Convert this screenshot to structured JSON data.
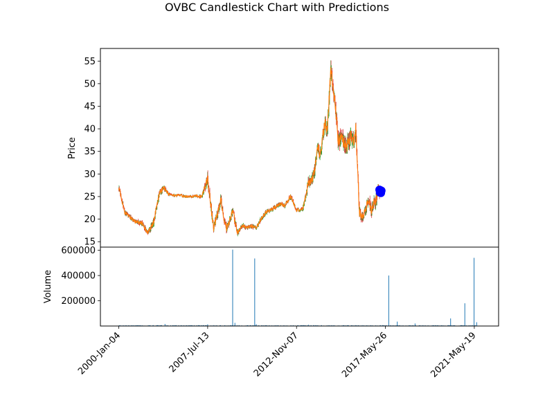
{
  "chart_data": {
    "type": "candlestick",
    "title": "OVBC Candlestick Chart with Predictions",
    "price_panel": {
      "ylabel": "Price",
      "ylim": [
        13.8,
        57.8
      ],
      "yticks": [
        15,
        20,
        25,
        30,
        35,
        40,
        45,
        50,
        55
      ],
      "ytick_labels": [
        "15",
        "20",
        "25",
        "30",
        "35",
        "40",
        "45",
        "50",
        "55"
      ],
      "x": [
        2000.0,
        2000.2,
        2000.5,
        2000.9,
        2001.4,
        2002.0,
        2002.4,
        2002.7,
        2003.0,
        2003.4,
        2003.8,
        2004.2,
        2004.5,
        2004.8,
        2005.2,
        2005.6,
        2006.0,
        2006.5,
        2007.0,
        2007.5,
        2008.0,
        2008.3,
        2008.6,
        2008.9,
        2009.1,
        2009.3,
        2009.6,
        2010.0,
        2010.4,
        2010.8,
        2011.2,
        2011.6,
        2012.0,
        2012.4,
        2012.8,
        2013.2,
        2013.6,
        2014.0,
        2014.5,
        2015.0,
        2015.5,
        2016.0,
        2016.4,
        2016.8,
        2017.0,
        2017.2,
        2017.4,
        2017.6,
        2017.9,
        2018.2,
        2018.5,
        2018.8,
        2019.0,
        2019.2,
        2019.4,
        2019.6,
        2019.8,
        2020.0,
        2020.3,
        2020.6,
        2020.9,
        2021.1,
        2021.3,
        2021.5,
        2021.7,
        2021.9,
        2022.0
      ],
      "close": [
        27.0,
        25.0,
        21.5,
        20.5,
        19.5,
        19.0,
        17.0,
        18.0,
        20.0,
        25.5,
        27.0,
        25.5,
        25.2,
        25.2,
        25.3,
        25.0,
        25.0,
        25.1,
        25.0,
        29.0,
        18.0,
        21.0,
        24.5,
        20.0,
        18.0,
        19.0,
        22.0,
        17.0,
        18.5,
        18.2,
        18.5,
        18.0,
        20.0,
        21.5,
        22.0,
        22.5,
        23.5,
        23.0,
        25.0,
        22.0,
        22.0,
        28.0,
        29.0,
        36.0,
        34.0,
        38.5,
        41.0,
        40.0,
        53.5,
        47.0,
        37.5,
        38.0,
        37.0,
        36.0,
        37.0,
        38.5,
        36.5,
        40.0,
        21.5,
        20.5,
        23.0,
        24.0,
        22.0,
        23.5,
        24.0,
        28.0,
        25.5
      ],
      "amplitude": [
        0.8,
        0.7,
        0.6,
        0.5,
        0.5,
        0.6,
        0.6,
        0.8,
        1.0,
        0.8,
        0.6,
        0.4,
        0.3,
        0.3,
        0.3,
        0.3,
        0.3,
        0.3,
        0.4,
        1.5,
        1.2,
        1.0,
        1.2,
        1.0,
        1.0,
        0.8,
        0.9,
        0.7,
        0.6,
        0.5,
        0.5,
        0.5,
        0.5,
        0.5,
        0.5,
        0.5,
        0.5,
        0.5,
        0.6,
        0.5,
        0.5,
        1.2,
        1.3,
        1.5,
        1.5,
        1.6,
        1.8,
        1.8,
        2.0,
        2.0,
        2.0,
        2.0,
        2.0,
        2.0,
        2.0,
        2.0,
        2.0,
        2.0,
        1.5,
        1.2,
        1.2,
        1.2,
        1.5,
        1.5,
        1.5,
        1.5,
        1.0
      ],
      "candle_up_color": "#2ca02c",
      "candle_down_color": "#d62728",
      "close_line_color": "#ff7f0e",
      "prediction": {
        "x": [
          2022.0,
          2022.04,
          2022.08,
          2022.12,
          2022.16
        ],
        "values": [
          26.5,
          25.9,
          26.4,
          25.8,
          26.3
        ],
        "color": "#0000ff"
      }
    },
    "volume_panel": {
      "ylabel": "Volume",
      "ylim": [
        0,
        625000
      ],
      "yticks": [
        200000,
        400000,
        600000
      ],
      "ytick_labels": [
        "200000",
        "400000",
        "600000"
      ],
      "baseline": 4000,
      "spikes": [
        {
          "x": 2003.9,
          "value": 16000
        },
        {
          "x": 2007.5,
          "value": 13000
        },
        {
          "x": 2009.61,
          "value": 605000
        },
        {
          "x": 2009.8,
          "value": 25000
        },
        {
          "x": 2011.47,
          "value": 535000
        },
        {
          "x": 2011.6,
          "value": 14000
        },
        {
          "x": 2016.0,
          "value": 10000
        },
        {
          "x": 2022.78,
          "value": 400000
        },
        {
          "x": 2023.5,
          "value": 35000
        },
        {
          "x": 2025.0,
          "value": 20000
        },
        {
          "x": 2028.0,
          "value": 60000
        },
        {
          "x": 2029.2,
          "value": 180000
        },
        {
          "x": 2029.98,
          "value": 540000
        },
        {
          "x": 2030.2,
          "value": 30000
        }
      ],
      "bar_color": "#1f77b4"
    },
    "xaxis": {
      "xlim": [
        1998.45,
        2032.05
      ],
      "ticks": [
        2000.0,
        2007.5,
        2015.0,
        2022.5,
        2030.0
      ],
      "tick_labels": [
        "2000-Jan-04",
        "2007-Jul-13",
        "2012-Nov-07",
        "2017-May-26",
        "2021-May-19"
      ],
      "label_rotation": 45
    }
  }
}
